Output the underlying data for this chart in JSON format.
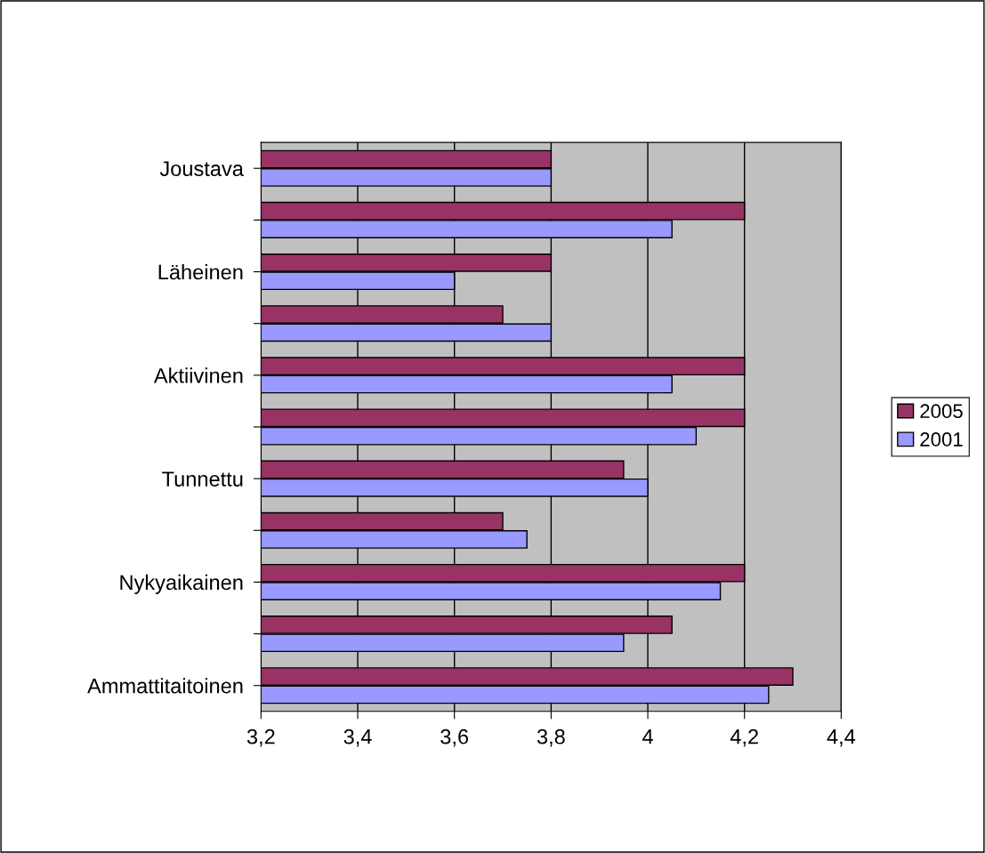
{
  "chart_data": {
    "type": "bar",
    "orientation": "horizontal",
    "categories": [
      "Joustava",
      null,
      "Läheinen",
      null,
      "Aktiivinen",
      null,
      "Tunnettu",
      null,
      "Nykyaikainen",
      null,
      "Ammattitaitoinen"
    ],
    "series": [
      {
        "name": "2005",
        "color": "#993366",
        "values": [
          3.8,
          4.2,
          3.8,
          3.7,
          4.2,
          4.2,
          3.95,
          3.7,
          4.2,
          4.05,
          4.3
        ]
      },
      {
        "name": "2001",
        "color": "#9999ff",
        "values": [
          3.8,
          4.05,
          3.6,
          3.8,
          4.05,
          4.1,
          4.0,
          3.75,
          4.15,
          3.95,
          4.25
        ]
      }
    ],
    "xlim": [
      3.2,
      4.4
    ],
    "xticks": [
      {
        "value": 3.2,
        "label": "3,2"
      },
      {
        "value": 3.4,
        "label": "3,4"
      },
      {
        "value": 3.6,
        "label": "3,6"
      },
      {
        "value": 3.8,
        "label": "3,8"
      },
      4,
      {
        "value": 4.2,
        "label": "4,2"
      },
      {
        "value": 4.4,
        "label": "4,4"
      }
    ],
    "grid": "x",
    "legend": "right"
  }
}
